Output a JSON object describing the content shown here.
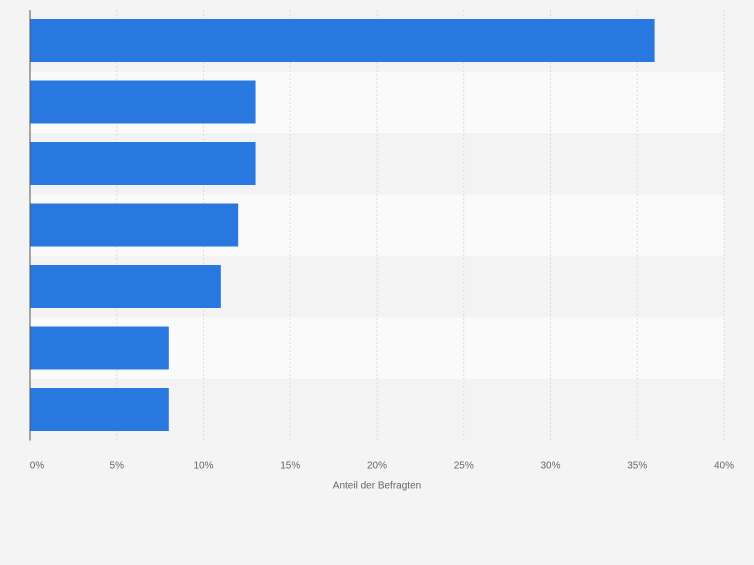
{
  "chart_data": {
    "type": "bar",
    "orientation": "horizontal",
    "categories": [
      "",
      "",
      "",
      "",
      "",
      "",
      ""
    ],
    "values": [
      36,
      13,
      13,
      12,
      11,
      8,
      8
    ],
    "xlabel": "Anteil der Befragten",
    "ylabel": "",
    "xlim": [
      0,
      40
    ],
    "ticks": [
      0,
      5,
      10,
      15,
      20,
      25,
      30,
      35,
      40
    ],
    "tick_labels": [
      "0%",
      "5%",
      "10%",
      "15%",
      "20%",
      "25%",
      "30%",
      "35%",
      "40%"
    ],
    "grid": true,
    "legend": "none",
    "colors": {
      "bar": "#2878e0",
      "background": "#f4f4f4",
      "band_light": "#fafafa",
      "band_dark": "#f3f3f3",
      "grid": "#dcdcdc",
      "axis": "#555555",
      "text": "#666666"
    }
  }
}
